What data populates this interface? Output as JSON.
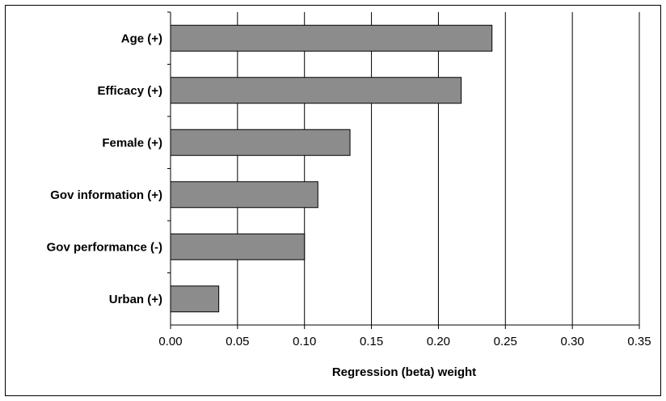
{
  "chart_data": {
    "type": "bar",
    "orientation": "horizontal",
    "categories": [
      "Age (+)",
      "Efficacy (+)",
      "Female (+)",
      "Gov information (+)",
      "Gov performance  (-)",
      "Urban (+)"
    ],
    "values": [
      0.24,
      0.217,
      0.134,
      0.11,
      0.1,
      0.036
    ],
    "xlabel": "Regression (beta) weight",
    "xlim": [
      0,
      0.35
    ],
    "xticks": [
      "0.00",
      "0.05",
      "0.10",
      "0.15",
      "0.20",
      "0.25",
      "0.30",
      "0.35"
    ],
    "grid": "vertical",
    "colors": {
      "bar_fill": "#8c8c8c",
      "bar_stroke": "#000000",
      "grid": "#000000"
    }
  }
}
